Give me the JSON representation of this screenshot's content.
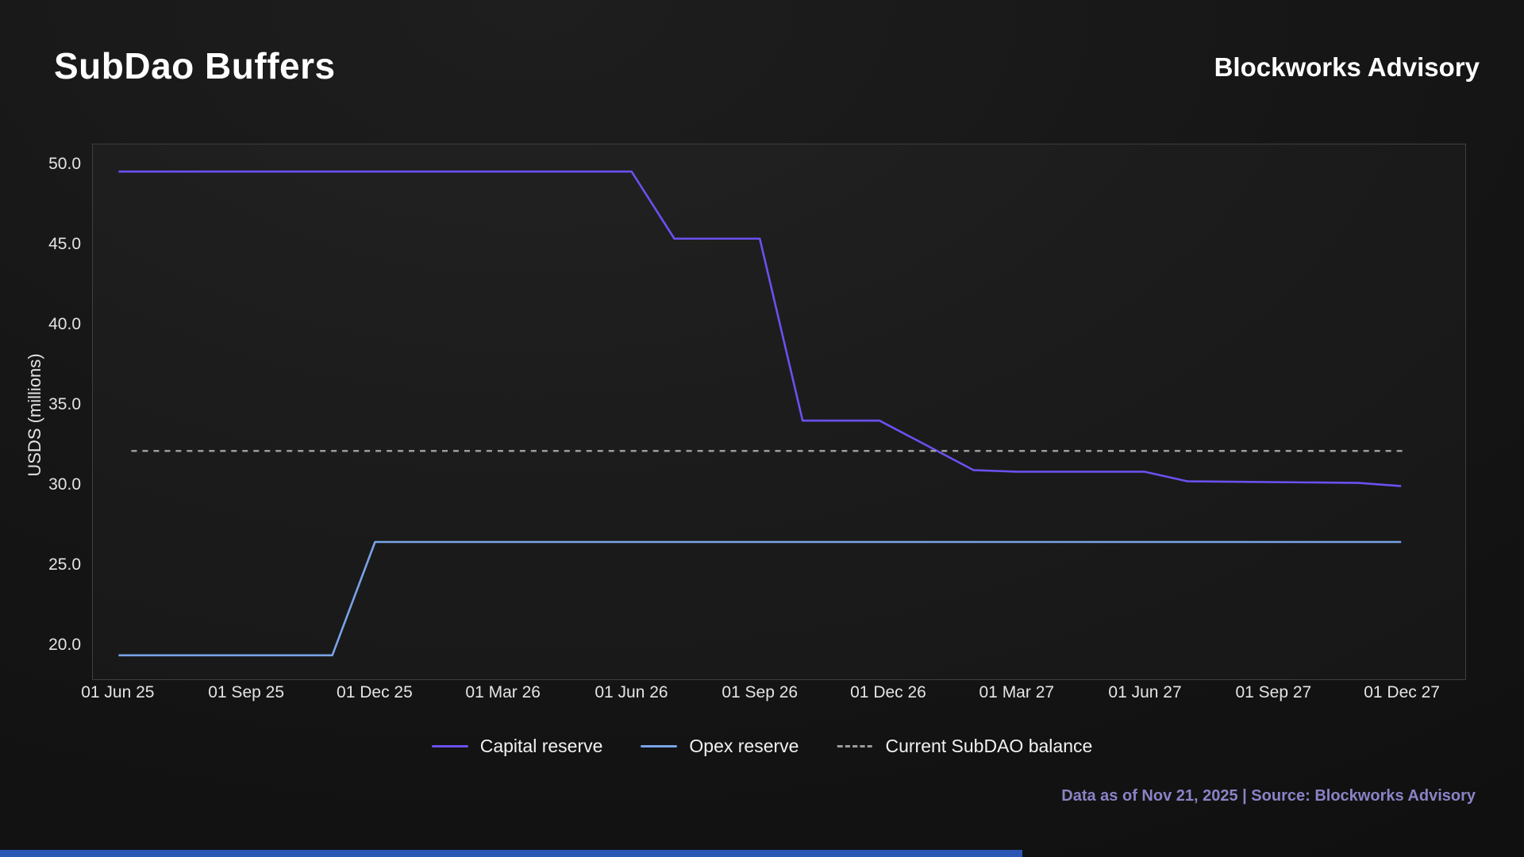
{
  "header": {
    "title": "SubDao Buffers",
    "brand": "Blockworks Advisory"
  },
  "footer": {
    "source_note": "Data as of Nov 21, 2025 | Source: Blockworks Advisory"
  },
  "colors": {
    "background": "#141414",
    "plot_border": "#3f3f3f",
    "axis_text": "#e4e4e4",
    "capital_reserve_line": "#6c50f0",
    "opex_reserve_line": "#79a3e6",
    "balance_dashed_line": "#9c9c9c",
    "footer_text": "#8a83c6",
    "accent_bar": "#2a56b4"
  },
  "chart_data": {
    "type": "line",
    "title": "SubDao Buffers",
    "xlabel": "",
    "ylabel": "USDS (millions)",
    "grid": false,
    "legend_position": "bottom",
    "x_unit": "months since 01 Jun 2025",
    "xlim": [
      -0.6,
      31.5
    ],
    "ylim": [
      17.8,
      51.3
    ],
    "x_tick_positions": [
      0,
      3,
      6,
      9,
      12,
      15,
      18,
      21,
      24,
      27,
      30
    ],
    "x_tick_labels": [
      "01 Jun 25",
      "01 Sep 25",
      "01 Dec 25",
      "01 Mar 26",
      "01 Jun 26",
      "01 Sep 26",
      "01 Dec 26",
      "01 Mar 27",
      "01 Jun 27",
      "01 Sep 27",
      "01 Dec 27"
    ],
    "y_ticks": [
      20,
      25,
      30,
      35,
      40,
      45,
      50
    ],
    "y_tick_labels": [
      "20.0",
      "25.0",
      "30.0",
      "35.0",
      "40.0",
      "45.0",
      "50.0"
    ],
    "series": [
      {
        "name": "Capital reserve",
        "color": "#6c50f0",
        "dash": null,
        "points": [
          [
            0,
            49.6
          ],
          [
            12,
            49.6
          ],
          [
            13,
            45.4
          ],
          [
            15,
            45.4
          ],
          [
            16,
            34.0
          ],
          [
            17.8,
            34.0
          ],
          [
            20,
            30.9
          ],
          [
            21,
            30.8
          ],
          [
            24,
            30.8
          ],
          [
            25,
            30.2
          ],
          [
            29,
            30.1
          ],
          [
            30,
            29.9
          ]
        ]
      },
      {
        "name": "Opex reserve",
        "color": "#79a3e6",
        "dash": null,
        "points": [
          [
            0,
            19.3
          ],
          [
            5,
            19.3
          ],
          [
            6,
            26.4
          ],
          [
            30,
            26.4
          ]
        ]
      },
      {
        "name": "Current SubDAO balance",
        "color": "#9c9c9c",
        "dash": "7 7",
        "points": [
          [
            0.3,
            32.1
          ],
          [
            30.1,
            32.1
          ]
        ]
      }
    ]
  }
}
